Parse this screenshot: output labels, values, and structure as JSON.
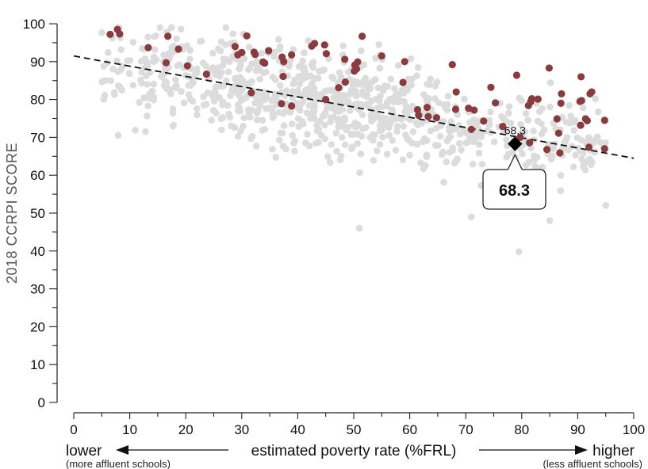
{
  "chart_data": {
    "type": "scatter",
    "title": "",
    "xlabel": "estimated poverty rate (%FRL)",
    "ylabel": "2018 CCRPI SCORE",
    "xlim": [
      0,
      100
    ],
    "ylim": [
      0,
      100
    ],
    "x_ticks": [
      "0",
      "10",
      "20",
      "30",
      "40",
      "50",
      "60",
      "70",
      "80",
      "90",
      "100"
    ],
    "y_ticks": [
      "0",
      "10",
      "20",
      "30",
      "40",
      "50",
      "60",
      "70",
      "80",
      "90",
      "100"
    ],
    "x_axis_left_label": "lower",
    "x_axis_right_label": "higher",
    "x_axis_left_sub": "(more affluent schools)",
    "x_axis_right_sub": "(less affluent schools)",
    "grid": false,
    "colors": {
      "background_points": "#dcdcdc",
      "highlight_points": "#8b3a3e",
      "trend_line": "#111111",
      "selected_point": "#000000"
    },
    "trend_line": {
      "x": [
        0,
        100
      ],
      "y": [
        91.5,
        64.5
      ]
    },
    "selected": {
      "x": 78.8,
      "y": 68.3,
      "label": "68.3",
      "callout": "68.3"
    },
    "series": [
      {
        "role": "highlighted",
        "points": [
          [
            6.5,
            97.2
          ],
          [
            7.8,
            98.5
          ],
          [
            8.2,
            97.3
          ],
          [
            13.3,
            93.7
          ],
          [
            16.5,
            89.7
          ],
          [
            16.8,
            96.7
          ],
          [
            18.7,
            93.3
          ],
          [
            20.3,
            88.9
          ],
          [
            23.7,
            86.7
          ],
          [
            28.8,
            94.0
          ],
          [
            29.3,
            91.8
          ],
          [
            30.0,
            92.4
          ],
          [
            30.9,
            96.8
          ],
          [
            31.7,
            81.8
          ],
          [
            32.2,
            92.5
          ],
          [
            32.4,
            91.9
          ],
          [
            33.8,
            89.9
          ],
          [
            34.1,
            89.6
          ],
          [
            34.8,
            92.9
          ],
          [
            37.1,
            78.9
          ],
          [
            37.2,
            91.2
          ],
          [
            37.4,
            86.1
          ],
          [
            37.5,
            90.0
          ],
          [
            38.9,
            78.3
          ],
          [
            38.9,
            91.8
          ],
          [
            42.5,
            94.1
          ],
          [
            43.0,
            94.8
          ],
          [
            44.8,
            94.4
          ],
          [
            45.0,
            80.0
          ],
          [
            45.1,
            92.1
          ],
          [
            47.3,
            83.1
          ],
          [
            48.4,
            90.6
          ],
          [
            48.5,
            84.6
          ],
          [
            50.1,
            87.5
          ],
          [
            50.2,
            89.1
          ],
          [
            50.5,
            88.1
          ],
          [
            50.7,
            89.9
          ],
          [
            51.5,
            96.7
          ],
          [
            55.0,
            91.5
          ],
          [
            58.8,
            84.5
          ],
          [
            59.1,
            90.0
          ],
          [
            61.4,
            77.3
          ],
          [
            61.6,
            75.8
          ],
          [
            63.1,
            77.9
          ],
          [
            63.3,
            75.5
          ],
          [
            64.8,
            75.2
          ],
          [
            67.6,
            89.2
          ],
          [
            68.2,
            77.4
          ],
          [
            68.3,
            82.0
          ],
          [
            70.5,
            77.7
          ],
          [
            71.0,
            72.1
          ],
          [
            71.5,
            77.2
          ],
          [
            73.2,
            74.3
          ],
          [
            74.5,
            83.2
          ],
          [
            75.3,
            79.1
          ],
          [
            76.6,
            72.9
          ],
          [
            79.1,
            86.4
          ],
          [
            79.7,
            70.0
          ],
          [
            81.2,
            78.4
          ],
          [
            81.4,
            68.6
          ],
          [
            81.6,
            79.4
          ],
          [
            81.8,
            80.2
          ],
          [
            82.9,
            80.1
          ],
          [
            84.5,
            66.8
          ],
          [
            84.9,
            88.3
          ],
          [
            86.3,
            74.9
          ],
          [
            86.6,
            71.1
          ],
          [
            86.8,
            65.9
          ],
          [
            87.0,
            79.0
          ],
          [
            87.1,
            81.5
          ],
          [
            90.6,
            86.0
          ],
          [
            90.4,
            79.5
          ],
          [
            90.7,
            79.7
          ],
          [
            90.5,
            73.2
          ],
          [
            91.4,
            74.9
          ],
          [
            91.7,
            74.4
          ],
          [
            92.0,
            67.4
          ],
          [
            92.2,
            81.5
          ],
          [
            92.5,
            82.0
          ],
          [
            94.8,
            74.5
          ],
          [
            94.8,
            67.0
          ]
        ]
      }
    ]
  }
}
